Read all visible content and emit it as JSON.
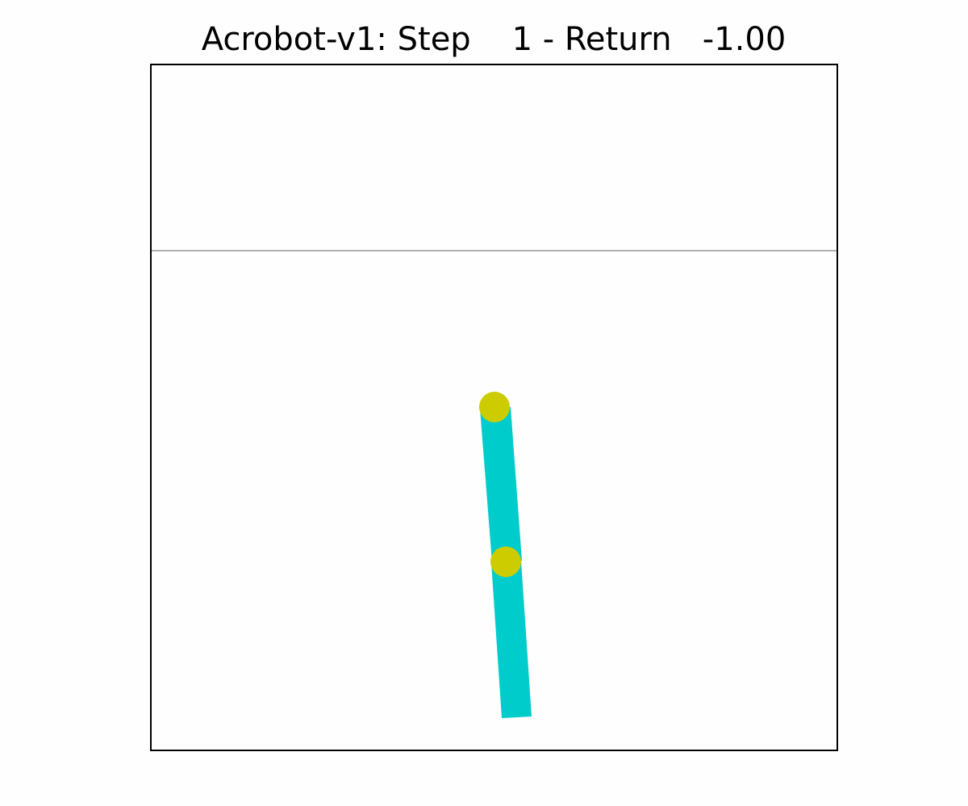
{
  "title": {
    "env": "Acrobot-v1",
    "step_label": "Step",
    "step": 1,
    "return_label": "Return",
    "return": "-1.00"
  },
  "colors": {
    "background": "#fefefe",
    "frame": "#000000",
    "target_line": "#808080",
    "link": "#00cccc",
    "joint": "#cccc00"
  }
}
